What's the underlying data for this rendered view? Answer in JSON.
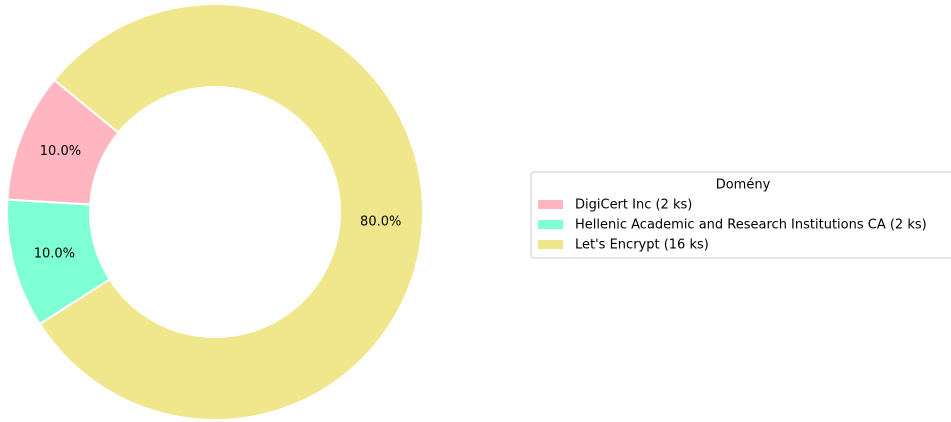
{
  "chart_data": {
    "type": "donut",
    "categories": [
      "DigiCert Inc (2 ks)",
      "Hellenic Academic and Research Institutions CA (2 ks)",
      "Let's Encrypt (16 ks)"
    ],
    "values": [
      10,
      10,
      80
    ],
    "value_labels": [
      "10.0%",
      "10.0%",
      "80.0%"
    ],
    "colors": [
      "#ffb6c1",
      "#7fffd4",
      "#f0e68c"
    ],
    "legend_title": "Domény",
    "legend": "right"
  }
}
